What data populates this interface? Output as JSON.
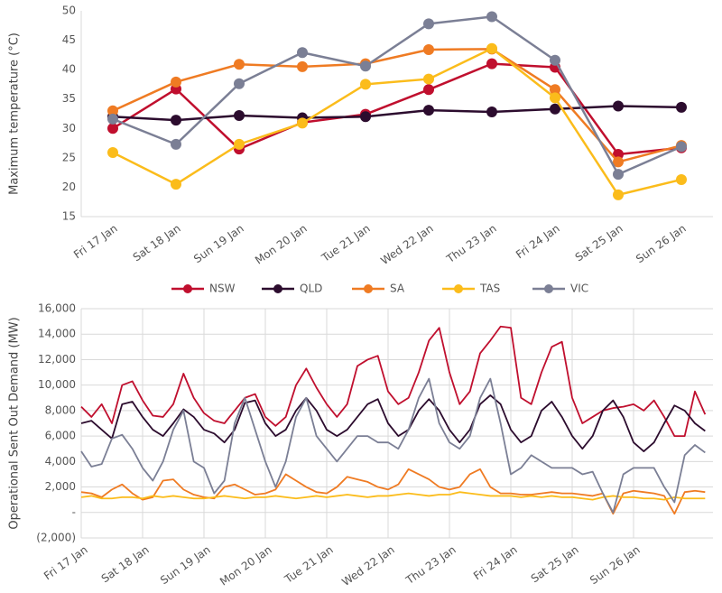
{
  "chart_data": [
    {
      "type": "line",
      "markers": true,
      "grid": false,
      "legend": "bottom",
      "ylabel": "Maximum temperature (°C)",
      "categories": [
        "Fri 17 Jan",
        "Sat 18 Jan",
        "Sun 19 Jan",
        "Mon 20 Jan",
        "Tue 21 Jan",
        "Wed 22 Jan",
        "Thu 23 Jan",
        "Fri 24 Jan",
        "Sat 25 Jan",
        "Sun 26 Jan"
      ],
      "ylim": [
        15,
        50
      ],
      "yticks": [
        15,
        20,
        25,
        30,
        35,
        40,
        45,
        50
      ],
      "series": [
        {
          "name": "NSW",
          "color": "#c00f2e",
          "values": [
            30,
            36.7,
            26.5,
            31,
            32.4,
            36.6,
            41,
            40.4,
            25.6,
            26.7
          ]
        },
        {
          "name": "QLD",
          "color": "#2c0c2e",
          "values": [
            32,
            31.4,
            32.2,
            31.8,
            32,
            33.1,
            32.8,
            33.3,
            33.8,
            33.6
          ]
        },
        {
          "name": "SA",
          "color": "#ef7b23",
          "values": [
            33,
            37.9,
            40.9,
            40.5,
            41,
            43.4,
            43.5,
            36.6,
            24.3,
            27.1
          ]
        },
        {
          "name": "TAS",
          "color": "#fbbc1b",
          "values": [
            25.9,
            20.5,
            27.3,
            30.9,
            37.5,
            38.4,
            43.6,
            35.2,
            18.7,
            21.3
          ]
        },
        {
          "name": "VIC",
          "color": "#7b7f95",
          "values": [
            31.6,
            27.3,
            37.6,
            42.9,
            40.6,
            47.8,
            49,
            41.6,
            22.2,
            26.9
          ]
        }
      ]
    },
    {
      "type": "line",
      "markers": false,
      "grid": true,
      "ylabel": "Operational Sent Out Demand (MW)",
      "categories": [
        "Fri 17 Jan",
        null,
        null,
        null,
        null,
        null,
        "Sat 18 Jan",
        null,
        null,
        null,
        null,
        null,
        "Sun 19 Jan",
        null,
        null,
        null,
        null,
        null,
        "Mon 20 Jan",
        null,
        null,
        null,
        null,
        null,
        "Tue 21 Jan",
        null,
        null,
        null,
        null,
        null,
        "Wed 22 Jan",
        null,
        null,
        null,
        null,
        null,
        "Thu 23 Jan",
        null,
        null,
        null,
        null,
        null,
        "Fri 24 Jan",
        null,
        null,
        null,
        null,
        null,
        "Sat 25 Jan",
        null,
        null,
        null,
        null,
        null,
        "Sun 26 Jan",
        null,
        null,
        null,
        null,
        null,
        null,
        null
      ],
      "ylim": [
        -2000,
        16000
      ],
      "yticks": [
        {
          "value": -2000,
          "label": "(2,000)"
        },
        {
          "value": 0,
          "label": "-"
        },
        {
          "value": 2000,
          "label": "2,000"
        },
        {
          "value": 4000,
          "label": "4,000"
        },
        {
          "value": 6000,
          "label": "6,000"
        },
        {
          "value": 8000,
          "label": "8,000"
        },
        {
          "value": 10000,
          "label": "10,000"
        },
        {
          "value": 12000,
          "label": "12,000"
        },
        {
          "value": 14000,
          "label": "14,000"
        },
        {
          "value": 16000,
          "label": "16,000"
        }
      ],
      "series": [
        {
          "color": "#c00f2e",
          "values": [
            8300,
            7500,
            8500,
            7000,
            10000,
            10300,
            8800,
            7600,
            7500,
            8500,
            10900,
            9000,
            7800,
            7200,
            7000,
            8000,
            9000,
            9300,
            7500,
            6800,
            7500,
            10000,
            11300,
            9800,
            8500,
            7500,
            8500,
            11500,
            12000,
            12300,
            9500,
            8500,
            9000,
            11000,
            13500,
            14500,
            11000,
            8500,
            9500,
            12500,
            13500,
            14600,
            14500,
            9000,
            8500,
            11000,
            13000,
            13400,
            9000,
            7000,
            7500,
            8000,
            8200,
            8300,
            8500,
            8000,
            8800,
            7500,
            6000,
            6000,
            9500,
            7700
          ]
        },
        {
          "color": "#2c0c2e",
          "values": [
            7000,
            7200,
            6500,
            5800,
            8500,
            8700,
            7500,
            6500,
            6000,
            7000,
            8100,
            7500,
            6500,
            6200,
            5500,
            6500,
            8600,
            8800,
            7000,
            6000,
            6500,
            8000,
            9000,
            8000,
            6500,
            6000,
            6500,
            7500,
            8500,
            8900,
            7000,
            6000,
            6500,
            8000,
            8900,
            8000,
            6500,
            5500,
            6500,
            8500,
            9200,
            8500,
            6500,
            5500,
            6000,
            8000,
            8700,
            7500,
            6000,
            5000,
            6000,
            8000,
            8800,
            7500,
            5500,
            4800,
            5500,
            7000,
            8400,
            8000,
            7000,
            6400
          ]
        },
        {
          "color": "#ef7b23",
          "values": [
            1600,
            1500,
            1200,
            1800,
            2200,
            1500,
            1000,
            1200,
            2500,
            2600,
            1800,
            1400,
            1200,
            1100,
            2000,
            2200,
            1800,
            1400,
            1500,
            1800,
            3000,
            2500,
            2000,
            1600,
            1500,
            2000,
            2800,
            2600,
            2400,
            2000,
            1800,
            2200,
            3400,
            3000,
            2600,
            2000,
            1800,
            2000,
            3000,
            3400,
            2000,
            1500,
            1500,
            1400,
            1400,
            1500,
            1600,
            1500,
            1500,
            1400,
            1300,
            1500,
            -100,
            1500,
            1700,
            1600,
            1500,
            1300,
            -100,
            1600,
            1700,
            1600
          ]
        },
        {
          "color": "#fbbc1b",
          "values": [
            1200,
            1300,
            1100,
            1100,
            1200,
            1200,
            1100,
            1300,
            1200,
            1300,
            1200,
            1100,
            1100,
            1200,
            1300,
            1200,
            1100,
            1200,
            1200,
            1300,
            1200,
            1100,
            1200,
            1300,
            1200,
            1300,
            1400,
            1300,
            1200,
            1300,
            1300,
            1400,
            1500,
            1400,
            1300,
            1400,
            1400,
            1600,
            1500,
            1400,
            1300,
            1300,
            1300,
            1200,
            1300,
            1200,
            1300,
            1200,
            1200,
            1100,
            1000,
            1200,
            1300,
            1200,
            1200,
            1100,
            1100,
            1000,
            1200,
            1100,
            1100,
            1100
          ]
        },
        {
          "color": "#7b7f95",
          "values": [
            4800,
            3600,
            3800,
            5800,
            6100,
            5000,
            3500,
            2500,
            4000,
            6500,
            8000,
            4000,
            3500,
            1500,
            2500,
            7000,
            9000,
            6500,
            4000,
            2000,
            4000,
            7500,
            9000,
            6000,
            5000,
            4000,
            5000,
            6000,
            6000,
            5500,
            5500,
            5000,
            6500,
            9000,
            10500,
            7000,
            5500,
            5000,
            6000,
            9000,
            10500,
            7000,
            3000,
            3500,
            4500,
            4000,
            3500,
            3500,
            3500,
            3000,
            3200,
            1500,
            0,
            3000,
            3500,
            3500,
            3500,
            2000,
            800,
            4500,
            5300,
            4700
          ]
        }
      ]
    }
  ]
}
